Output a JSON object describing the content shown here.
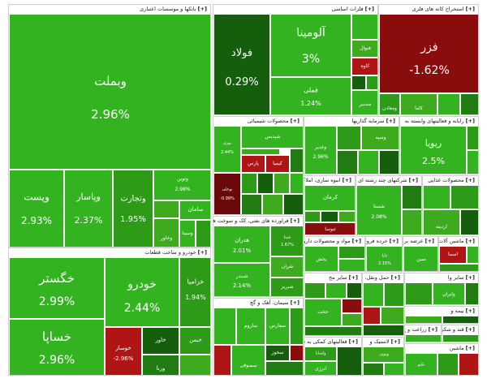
{
  "toggle": "[+]",
  "sections": {
    "banks": {
      "title": "بانکها و موسسات اعتباری"
    },
    "basic_metals": {
      "title": "فلزات اساسی"
    },
    "mining": {
      "title": "استخراج کانه های فلزی"
    },
    "chemicals": {
      "title": "محصولات شیمیائی"
    },
    "investment": {
      "title": "سرمایه گذاریها"
    },
    "affiliated": {
      "title": "رایانه و فعالیتهای وابسته به"
    },
    "construction": {
      "title": "انبوه سازی، املاک و مستغلات"
    },
    "multi": {
      "title": "شرکتهای چند رشته ای"
    },
    "food": {
      "title": "محصولات غذایی"
    },
    "pharma": {
      "title": "فراورده های نفتی، کک و سوخت هسته ای"
    },
    "auto": {
      "title": "خودرو و ساخت قطعات"
    },
    "cement": {
      "title": "سیمان، آهک و گچ"
    },
    "wood": {
      "title": "مواد و محصولات دارویی"
    },
    "retail": {
      "title": "خرده فروشی"
    },
    "transport": {
      "title": "حمل ونقل، انبارداری"
    },
    "telecom": {
      "title": "عرضه برق"
    },
    "machines": {
      "title": "ماشین آلات"
    },
    "others": {
      "title": "سایر مح"
    },
    "electrical": {
      "title": "سایر وا"
    },
    "metal_products": {
      "title": "فعالیتهای کمکی به نه"
    },
    "rubber": {
      "title": "لاستیک و"
    },
    "insurance": {
      "title": "بیمه و"
    },
    "contracting": {
      "title": "زراعت و خ"
    },
    "tile_sec": {
      "title": "قند و شکر"
    },
    "glass": {
      "title": "ماشین"
    }
  },
  "tiles": {
    "vbmellat": {
      "symbol": "وبملت",
      "pct": "2.96%"
    },
    "vpost": {
      "symbol": "وپست",
      "pct": "2.93%"
    },
    "vpasar": {
      "symbol": "وپاسار",
      "pct": "2.37%"
    },
    "vtejarat": {
      "symbol": "وتجارت",
      "pct": "1.95%"
    },
    "vtoosin": {
      "symbol": "وتوین",
      "pct": "2.98%"
    },
    "saman": {
      "symbol": "سامان"
    },
    "vkhavar": {
      "symbol": "وخاور"
    },
    "vsina": {
      "symbol": "وسینا"
    },
    "foolad": {
      "symbol": "فولاد",
      "pct": "0.29%"
    },
    "aluminium": {
      "symbol": "آلومینا",
      "pct": "3%"
    },
    "fameli": {
      "symbol": "فملی",
      "pct": "1.24%"
    },
    "fnovol": {
      "symbol": "فنوال"
    },
    "kaveh": {
      "symbol": "کاوه"
    },
    "saddor": {
      "symbol": "سدبیر"
    },
    "fazar": {
      "symbol": "فزر",
      "pct": "-1.62%"
    },
    "kama": {
      "symbol": "کاما"
    },
    "vmaaden": {
      "symbol": "ومعادن"
    },
    "pars": {
      "symbol": "پارس"
    },
    "shebandar": {
      "symbol": "شپدیس"
    },
    "noori": {
      "symbol": "نوری",
      "pct": "2.44%"
    },
    "kemp": {
      "symbol": "کیمیا"
    },
    "booshehr": {
      "symbol": "بوعلی",
      "pct": "-0.99%"
    },
    "ghadir": {
      "symbol": "وغدیر",
      "pct": "2.96%"
    },
    "vsepah": {
      "symbol": "وسپه"
    },
    "reyva": {
      "symbol": "ریویا",
      "pct": "2.5%"
    },
    "kerman": {
      "symbol": "کرمان"
    },
    "toosa": {
      "symbol": "ثنوسا"
    },
    "shasta": {
      "symbol": "شستا",
      "pct": "2.08%"
    },
    "ardineh": {
      "symbol": "اردینه"
    },
    "hedaran": {
      "symbol": "هدران",
      "pct": "2.01%"
    },
    "shabriz": {
      "symbol": "شپنا",
      "pct": "1.67%"
    },
    "sharan": {
      "symbol": "شران"
    },
    "shdaran": {
      "symbol": "شبندر",
      "pct": "2.14%"
    },
    "shabdar": {
      "symbol": "شبریز"
    },
    "pakhsh": {
      "symbol": "پخش"
    },
    "dana": {
      "symbol": "دانا",
      "pct": "2.15%"
    },
    "mabin": {
      "symbol": "مبین"
    },
    "asma": {
      "symbol": "اسما"
    },
    "khgostar": {
      "symbol": "خگستر",
      "pct": "2.99%"
    },
    "khodro": {
      "symbol": "خودرو",
      "pct": "2.44%"
    },
    "khazamia": {
      "symbol": "خزامیا",
      "pct": "1.94%"
    },
    "khsapa": {
      "symbol": "خساپا",
      "pct": "2.96%"
    },
    "khavar": {
      "symbol": "خاور"
    },
    "khosvaz": {
      "symbol": "خوساز",
      "pct": "-2.96%"
    },
    "khemin": {
      "symbol": "خبمن"
    },
    "vorna": {
      "symbol": "ورنا"
    },
    "saroom": {
      "symbol": "ساروم"
    },
    "sefars": {
      "symbol": "سفارس"
    },
    "sesofi": {
      "symbol": "سصوفی"
    },
    "sekhoz": {
      "symbol": "سخوز"
    },
    "hkhat": {
      "symbol": "حخت"
    },
    "aryan": {
      "symbol": "وایران"
    },
    "vlsapa": {
      "symbol": "ولساپا"
    },
    "anrjy": {
      "symbol": "انرژی"
    },
    "vnovin": {
      "symbol": "ونوین"
    },
    "teknoo": {
      "symbol": "تکنو"
    }
  },
  "colors": {
    "positive_strong": "#2d9a18",
    "positive_dark": "#155e0b",
    "negative": "#b01515",
    "negative_dark": "#6a0909"
  }
}
